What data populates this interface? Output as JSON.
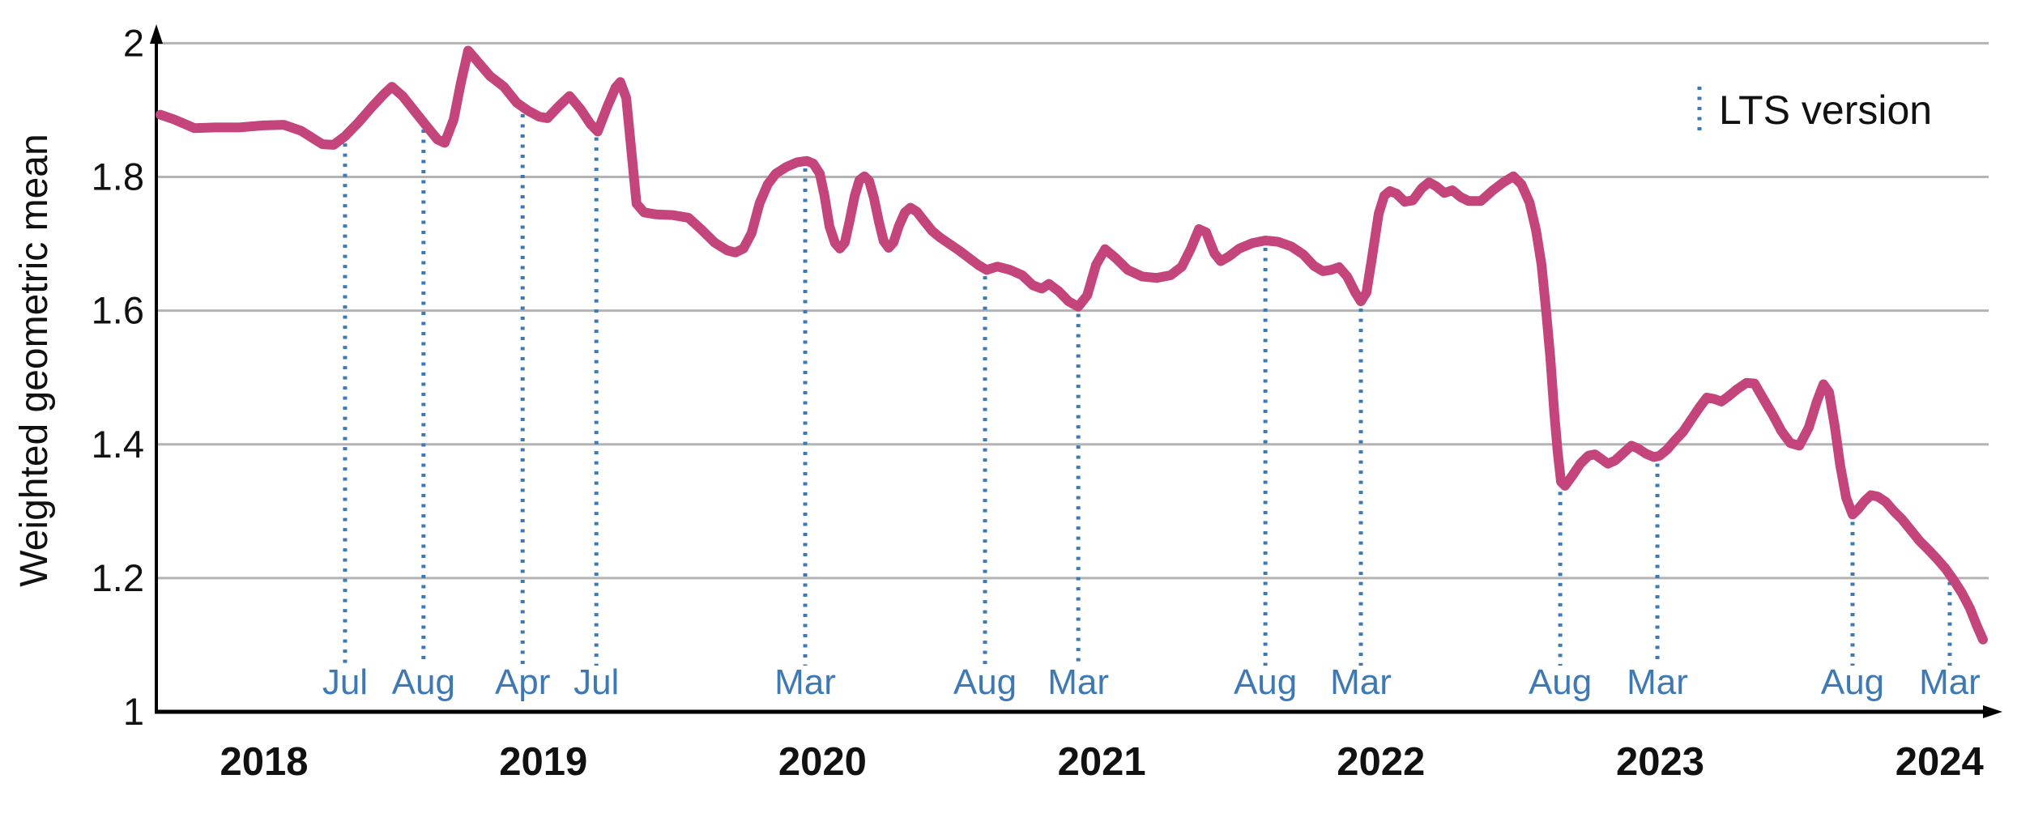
{
  "colors": {
    "series": "#C3457B",
    "lts_marker": "#3E79B4",
    "grid": "#B3B3B3",
    "axis": "#000000",
    "tick_text": "#111111"
  },
  "chart_data": {
    "type": "line",
    "title": "",
    "xlabel": "",
    "ylabel": "Weighted geometric mean",
    "ylim": [
      1,
      2
    ],
    "xlim_years": [
      2017.61,
      2024.22
    ],
    "grid": "horizontal",
    "yticks": [
      {
        "value": 1,
        "label": "1"
      },
      {
        "value": 1.2,
        "label": "1.2"
      },
      {
        "value": 1.4,
        "label": "1.4"
      },
      {
        "value": 1.6,
        "label": "1.6"
      },
      {
        "value": 1.8,
        "label": "1.8"
      },
      {
        "value": 2,
        "label": "2"
      }
    ],
    "xticks_years": [
      {
        "value": 2018,
        "label": "2018"
      },
      {
        "value": 2019,
        "label": "2019"
      },
      {
        "value": 2020,
        "label": "2020"
      },
      {
        "value": 2021,
        "label": "2021"
      },
      {
        "value": 2022,
        "label": "2022"
      },
      {
        "value": 2023,
        "label": "2023"
      },
      {
        "value": 2024,
        "label": "2024"
      }
    ],
    "legend": {
      "label": "LTS version",
      "position": "top-right",
      "marker": "dotted-vertical-line"
    },
    "lts_markers": {
      "items": [
        {
          "label": "Jul",
          "year": 2018.29
        },
        {
          "label": "Aug",
          "year": 2018.571
        },
        {
          "label": "Apr",
          "year": 2018.926
        },
        {
          "label": "Jul",
          "year": 2019.19
        },
        {
          "label": "Mar",
          "year": 2019.938
        },
        {
          "label": "Aug",
          "year": 2020.582
        },
        {
          "label": "Mar",
          "year": 2020.916
        },
        {
          "label": "Aug",
          "year": 2021.586
        },
        {
          "label": "Mar",
          "year": 2021.928
        },
        {
          "label": "Aug",
          "year": 2022.642
        },
        {
          "label": "Mar",
          "year": 2022.99
        },
        {
          "label": "Aug",
          "year": 2023.689
        },
        {
          "label": "Mar",
          "year": 2024.037
        }
      ]
    },
    "series": [
      {
        "name": "Weighted geometric mean",
        "points": [
          [
            2017.629,
            1.893
          ],
          [
            2017.678,
            1.886
          ],
          [
            2017.751,
            1.873
          ],
          [
            2017.823,
            1.874
          ],
          [
            2017.91,
            1.874
          ],
          [
            2017.997,
            1.877
          ],
          [
            2018.07,
            1.878
          ],
          [
            2018.133,
            1.869
          ],
          [
            2018.209,
            1.849
          ],
          [
            2018.249,
            1.848
          ],
          [
            2018.29,
            1.861
          ],
          [
            2018.339,
            1.882
          ],
          [
            2018.389,
            1.906
          ],
          [
            2018.432,
            1.925
          ],
          [
            2018.458,
            1.935
          ],
          [
            2018.496,
            1.921
          ],
          [
            2018.54,
            1.898
          ],
          [
            2018.58,
            1.877
          ],
          [
            2018.621,
            1.856
          ],
          [
            2018.647,
            1.851
          ],
          [
            2018.679,
            1.886
          ],
          [
            2018.705,
            1.941
          ],
          [
            2018.731,
            1.989
          ],
          [
            2018.766,
            1.972
          ],
          [
            2018.809,
            1.951
          ],
          [
            2018.859,
            1.935
          ],
          [
            2018.905,
            1.911
          ],
          [
            2018.946,
            1.899
          ],
          [
            2018.986,
            1.89
          ],
          [
            2019.015,
            1.888
          ],
          [
            2019.056,
            1.906
          ],
          [
            2019.094,
            1.921
          ],
          [
            2019.134,
            1.901
          ],
          [
            2019.169,
            1.879
          ],
          [
            2019.195,
            1.868
          ],
          [
            2019.23,
            1.906
          ],
          [
            2019.259,
            1.934
          ],
          [
            2019.276,
            1.942
          ],
          [
            2019.297,
            1.918
          ],
          [
            2019.317,
            1.832
          ],
          [
            2019.334,
            1.76
          ],
          [
            2019.361,
            1.747
          ],
          [
            2019.404,
            1.744
          ],
          [
            2019.462,
            1.743
          ],
          [
            2019.52,
            1.739
          ],
          [
            2019.567,
            1.721
          ],
          [
            2019.613,
            1.702
          ],
          [
            2019.659,
            1.69
          ],
          [
            2019.688,
            1.687
          ],
          [
            2019.717,
            1.693
          ],
          [
            2019.746,
            1.716
          ],
          [
            2019.775,
            1.761
          ],
          [
            2019.804,
            1.789
          ],
          [
            2019.833,
            1.805
          ],
          [
            2019.871,
            1.815
          ],
          [
            2019.909,
            1.822
          ],
          [
            2019.944,
            1.824
          ],
          [
            2019.967,
            1.82
          ],
          [
            2019.99,
            1.805
          ],
          [
            2020.007,
            1.772
          ],
          [
            2020.025,
            1.726
          ],
          [
            2020.045,
            1.701
          ],
          [
            2020.062,
            1.693
          ],
          [
            2020.08,
            1.702
          ],
          [
            2020.097,
            1.734
          ],
          [
            2020.115,
            1.771
          ],
          [
            2020.132,
            1.795
          ],
          [
            2020.15,
            1.801
          ],
          [
            2020.167,
            1.794
          ],
          [
            2020.184,
            1.769
          ],
          [
            2020.202,
            1.733
          ],
          [
            2020.219,
            1.704
          ],
          [
            2020.237,
            1.694
          ],
          [
            2020.254,
            1.702
          ],
          [
            2020.274,
            1.727
          ],
          [
            2020.295,
            1.747
          ],
          [
            2020.315,
            1.754
          ],
          [
            2020.338,
            1.748
          ],
          [
            2020.364,
            1.734
          ],
          [
            2020.393,
            1.719
          ],
          [
            2020.422,
            1.709
          ],
          [
            2020.454,
            1.7
          ],
          [
            2020.489,
            1.69
          ],
          [
            2020.524,
            1.679
          ],
          [
            2020.559,
            1.668
          ],
          [
            2020.588,
            1.661
          ],
          [
            2020.626,
            1.666
          ],
          [
            2020.672,
            1.661
          ],
          [
            2020.715,
            1.653
          ],
          [
            2020.753,
            1.638
          ],
          [
            2020.785,
            1.633
          ],
          [
            2020.811,
            1.64
          ],
          [
            2020.846,
            1.629
          ],
          [
            2020.881,
            1.614
          ],
          [
            2020.916,
            1.606
          ],
          [
            2020.948,
            1.623
          ],
          [
            2020.98,
            1.669
          ],
          [
            2021.012,
            1.692
          ],
          [
            2021.049,
            1.679
          ],
          [
            2021.093,
            1.661
          ],
          [
            2021.145,
            1.651
          ],
          [
            2021.197,
            1.649
          ],
          [
            2021.247,
            1.653
          ],
          [
            2021.287,
            1.666
          ],
          [
            2021.319,
            1.693
          ],
          [
            2021.348,
            1.722
          ],
          [
            2021.374,
            1.717
          ],
          [
            2021.403,
            1.686
          ],
          [
            2021.426,
            1.674
          ],
          [
            2021.455,
            1.681
          ],
          [
            2021.493,
            1.693
          ],
          [
            2021.539,
            1.701
          ],
          [
            2021.586,
            1.705
          ],
          [
            2021.632,
            1.703
          ],
          [
            2021.679,
            1.696
          ],
          [
            2021.722,
            1.684
          ],
          [
            2021.76,
            1.667
          ],
          [
            2021.792,
            1.659
          ],
          [
            2021.821,
            1.661
          ],
          [
            2021.85,
            1.665
          ],
          [
            2021.879,
            1.651
          ],
          [
            2021.908,
            1.627
          ],
          [
            2021.928,
            1.614
          ],
          [
            2021.948,
            1.627
          ],
          [
            2021.969,
            1.682
          ],
          [
            2021.992,
            1.745
          ],
          [
            2022.012,
            1.772
          ],
          [
            2022.032,
            1.779
          ],
          [
            2022.056,
            1.775
          ],
          [
            2022.085,
            1.763
          ],
          [
            2022.114,
            1.765
          ],
          [
            2022.146,
            1.783
          ],
          [
            2022.172,
            1.792
          ],
          [
            2022.198,
            1.786
          ],
          [
            2022.227,
            1.776
          ],
          [
            2022.256,
            1.78
          ],
          [
            2022.285,
            1.77
          ],
          [
            2022.314,
            1.764
          ],
          [
            2022.358,
            1.764
          ],
          [
            2022.401,
            1.78
          ],
          [
            2022.439,
            1.792
          ],
          [
            2022.474,
            1.801
          ],
          [
            2022.503,
            1.789
          ],
          [
            2022.532,
            1.762
          ],
          [
            2022.555,
            1.721
          ],
          [
            2022.575,
            1.669
          ],
          [
            2022.592,
            1.597
          ],
          [
            2022.607,
            1.528
          ],
          [
            2022.621,
            1.445
          ],
          [
            2022.633,
            1.388
          ],
          [
            2022.645,
            1.344
          ],
          [
            2022.659,
            1.338
          ],
          [
            2022.685,
            1.353
          ],
          [
            2022.714,
            1.371
          ],
          [
            2022.743,
            1.383
          ],
          [
            2022.766,
            1.385
          ],
          [
            2022.79,
            1.378
          ],
          [
            2022.813,
            1.371
          ],
          [
            2022.839,
            1.376
          ],
          [
            2022.868,
            1.387
          ],
          [
            2022.897,
            1.398
          ],
          [
            2022.92,
            1.394
          ],
          [
            2022.949,
            1.386
          ],
          [
            2022.978,
            1.381
          ],
          [
            2022.998,
            1.383
          ],
          [
            2023.024,
            1.392
          ],
          [
            2023.053,
            1.406
          ],
          [
            2023.082,
            1.419
          ],
          [
            2023.111,
            1.437
          ],
          [
            2023.14,
            1.455
          ],
          [
            2023.167,
            1.47
          ],
          [
            2023.193,
            1.468
          ],
          [
            2023.219,
            1.464
          ],
          [
            2023.245,
            1.472
          ],
          [
            2023.274,
            1.482
          ],
          [
            2023.309,
            1.492
          ],
          [
            2023.338,
            1.491
          ],
          [
            2023.367,
            1.47
          ],
          [
            2023.402,
            1.445
          ],
          [
            2023.434,
            1.42
          ],
          [
            2023.466,
            1.402
          ],
          [
            2023.498,
            1.398
          ],
          [
            2023.532,
            1.425
          ],
          [
            2023.561,
            1.464
          ],
          [
            2023.585,
            1.49
          ],
          [
            2023.605,
            1.478
          ],
          [
            2023.625,
            1.428
          ],
          [
            2023.645,
            1.368
          ],
          [
            2023.666,
            1.32
          ],
          [
            2023.689,
            1.295
          ],
          [
            2023.709,
            1.303
          ],
          [
            2023.732,
            1.315
          ],
          [
            2023.755,
            1.324
          ],
          [
            2023.779,
            1.322
          ],
          [
            2023.808,
            1.314
          ],
          [
            2023.837,
            1.3
          ],
          [
            2023.866,
            1.288
          ],
          [
            2023.901,
            1.27
          ],
          [
            2023.93,
            1.255
          ],
          [
            2023.959,
            1.243
          ],
          [
            2023.993,
            1.228
          ],
          [
            2024.022,
            1.214
          ],
          [
            2024.051,
            1.197
          ],
          [
            2024.08,
            1.178
          ],
          [
            2024.109,
            1.155
          ],
          [
            2024.135,
            1.128
          ],
          [
            2024.156,
            1.108
          ]
        ]
      }
    ]
  }
}
